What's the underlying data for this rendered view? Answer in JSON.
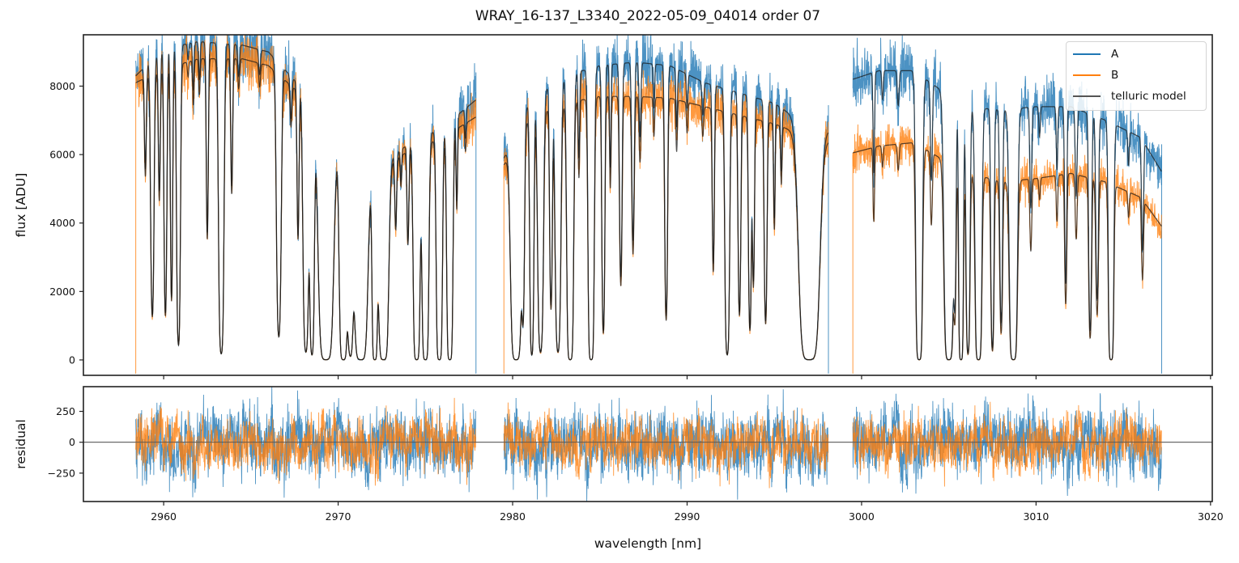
{
  "chart_data": [
    {
      "type": "line",
      "panel": "spectrum",
      "title": "WRAY_16-137_L3340_2022-05-09_04014  order 07",
      "xlabel": "",
      "ylabel": "flux [ADU]",
      "xlim": [
        2955.4,
        3020.1
      ],
      "ylim": [
        -450,
        9500
      ],
      "yticks": [
        0,
        2000,
        4000,
        6000,
        8000
      ],
      "ytick_labels": [
        "0",
        "2000",
        "4000",
        "6000",
        "8000"
      ],
      "xticks": [
        2960,
        2970,
        2980,
        2990,
        3000,
        3010,
        3020
      ],
      "grid": false,
      "legend": {
        "placement": "upper right",
        "entries": [
          {
            "label": "A",
            "color": "#1f77b4"
          },
          {
            "label": "B",
            "color": "#ff7f0e"
          },
          {
            "label": "telluric model",
            "color": "#555555"
          }
        ]
      },
      "segments": [
        {
          "x_start": 2958.4,
          "x_end": 2977.9,
          "continuum_A": [
            [
              2958.4,
              8300
            ],
            [
              2960,
              9100
            ],
            [
              2962,
              9300
            ],
            [
              2964.5,
              9200
            ],
            [
              2966,
              9000
            ],
            [
              2968,
              7900
            ],
            [
              2970,
              6500
            ],
            [
              2972,
              5500
            ],
            [
              2974,
              6300
            ],
            [
              2976,
              6800
            ],
            [
              2977.9,
              7600
            ]
          ],
          "continuum_B": [
            [
              2958.4,
              8100
            ],
            [
              2960,
              8500
            ],
            [
              2962,
              8800
            ],
            [
              2964.5,
              8800
            ],
            [
              2966,
              8600
            ],
            [
              2968,
              7700
            ],
            [
              2970,
              6300
            ],
            [
              2972,
              5400
            ],
            [
              2974,
              6100
            ],
            [
              2976,
              6500
            ],
            [
              2977.9,
              7100
            ]
          ]
        },
        {
          "x_start": 2979.5,
          "x_end": 2998.1,
          "continuum_A": [
            [
              2979.5,
              5900
            ],
            [
              2981,
              7600
            ],
            [
              2983,
              8300
            ],
            [
              2985,
              8600
            ],
            [
              2987,
              8700
            ],
            [
              2989,
              8600
            ],
            [
              2991,
              8100
            ],
            [
              2993,
              7800
            ],
            [
              2995,
              7500
            ],
            [
              2997,
              6800
            ],
            [
              2998.1,
              6700
            ]
          ],
          "continuum_B": [
            [
              2979.5,
              5700
            ],
            [
              2981,
              7100
            ],
            [
              2983,
              7500
            ],
            [
              2985,
              7700
            ],
            [
              2987,
              7700
            ],
            [
              2989,
              7650
            ],
            [
              2991,
              7400
            ],
            [
              2993,
              7150
            ],
            [
              2995,
              6900
            ],
            [
              2997,
              6500
            ],
            [
              2998.1,
              6400
            ]
          ]
        },
        {
          "x_start": 2999.5,
          "x_end": 3017.2,
          "continuum_A": [
            [
              2999.5,
              8200
            ],
            [
              3001,
              8450
            ],
            [
              3003,
              8450
            ],
            [
              3004.5,
              7900
            ],
            [
              3006,
              7400
            ],
            [
              3008,
              7300
            ],
            [
              3010,
              7400
            ],
            [
              3012,
              7400
            ],
            [
              3014,
              7000
            ],
            [
              3016,
              6500
            ],
            [
              3017.2,
              5500
            ]
          ],
          "continuum_B": [
            [
              2999.5,
              6050
            ],
            [
              3001,
              6250
            ],
            [
              3003,
              6350
            ],
            [
              3004.5,
              5900
            ],
            [
              3006,
              5500
            ],
            [
              3008,
              5200
            ],
            [
              3010,
              5300
            ],
            [
              3012,
              5450
            ],
            [
              3014,
              5200
            ],
            [
              3016,
              4750
            ],
            [
              3017.2,
              3900
            ]
          ]
        }
      ],
      "absorption_lines": [
        [
          2958.95,
          0.35,
          0.05
        ],
        [
          2959.35,
          0.85,
          0.07
        ],
        [
          2959.75,
          0.45,
          0.05
        ],
        [
          2960.1,
          0.85,
          0.06
        ],
        [
          2960.45,
          0.8,
          0.05
        ],
        [
          2960.85,
          0.95,
          0.07
        ],
        [
          2961.4,
          0.05,
          0.04
        ],
        [
          2961.7,
          0.15,
          0.04
        ],
        [
          2962.05,
          0.12,
          0.04
        ],
        [
          2962.5,
          0.6,
          0.05
        ],
        [
          2963.3,
          0.98,
          0.09
        ],
        [
          2963.9,
          0.45,
          0.05
        ],
        [
          2964.3,
          0.1,
          0.05
        ],
        [
          2965.5,
          0.08,
          0.05
        ],
        [
          2966.6,
          0.92,
          0.09
        ],
        [
          2967.3,
          0.15,
          0.05
        ],
        [
          2967.7,
          0.55,
          0.05
        ],
        [
          2968.15,
          0.97,
          0.1
        ],
        [
          2968.5,
          0.98,
          0.08
        ],
        [
          2969.3,
          1.0,
          0.22
        ],
        [
          2970.3,
          1.0,
          0.12
        ],
        [
          2970.7,
          0.98,
          0.1
        ],
        [
          2971.3,
          1.0,
          0.2
        ],
        [
          2972.1,
          1.0,
          0.08
        ],
        [
          2972.6,
          1.0,
          0.15
        ],
        [
          2973.3,
          0.35,
          0.05
        ],
        [
          2973.6,
          0.15,
          0.04
        ],
        [
          2974.0,
          0.45,
          0.05
        ],
        [
          2974.5,
          1.0,
          0.1
        ],
        [
          2975.0,
          1.0,
          0.1
        ],
        [
          2975.8,
          1.0,
          0.09
        ],
        [
          2976.4,
          1.0,
          0.09
        ],
        [
          2976.8,
          0.35,
          0.04
        ],
        [
          2977.3,
          0.12,
          0.04
        ],
        [
          2980.2,
          1.0,
          0.16
        ],
        [
          2980.6,
          0.8,
          0.06
        ],
        [
          2981.1,
          0.98,
          0.07
        ],
        [
          2981.6,
          0.97,
          0.1
        ],
        [
          2982.2,
          0.8,
          0.06
        ],
        [
          2982.6,
          0.97,
          0.1
        ],
        [
          2983.3,
          1.0,
          0.1
        ],
        [
          2983.8,
          0.3,
          0.04
        ],
        [
          2984.5,
          1.0,
          0.09
        ],
        [
          2985.2,
          0.9,
          0.06
        ],
        [
          2985.6,
          0.35,
          0.04
        ],
        [
          2986.2,
          0.72,
          0.06
        ],
        [
          2986.9,
          0.6,
          0.06
        ],
        [
          2987.3,
          0.25,
          0.05
        ],
        [
          2988.1,
          0.15,
          0.04
        ],
        [
          2988.8,
          0.85,
          0.06
        ],
        [
          2989.4,
          0.2,
          0.04
        ],
        [
          2990.0,
          0.12,
          0.04
        ],
        [
          2990.9,
          0.12,
          0.05
        ],
        [
          2991.5,
          0.65,
          0.05
        ],
        [
          2992.3,
          0.98,
          0.08
        ],
        [
          2993.0,
          0.82,
          0.06
        ],
        [
          2993.6,
          0.88,
          0.06
        ],
        [
          2993.8,
          0.7,
          0.05
        ],
        [
          2994.5,
          0.85,
          0.06
        ],
        [
          2995.0,
          0.45,
          0.04
        ],
        [
          2995.4,
          0.25,
          0.04
        ],
        [
          2997.0,
          1.0,
          0.3
        ],
        [
          3000.7,
          0.35,
          0.04
        ],
        [
          3001.2,
          0.1,
          0.04
        ],
        [
          3002.1,
          0.12,
          0.05
        ],
        [
          3003.3,
          1.0,
          0.1
        ],
        [
          3004.0,
          0.35,
          0.05
        ],
        [
          3005.0,
          1.0,
          0.14
        ],
        [
          3005.35,
          0.75,
          0.05
        ],
        [
          3005.7,
          1.0,
          0.07
        ],
        [
          3006.1,
          0.97,
          0.07
        ],
        [
          3006.7,
          1.0,
          0.1
        ],
        [
          3007.5,
          0.95,
          0.06
        ],
        [
          3008.0,
          0.85,
          0.06
        ],
        [
          3008.7,
          1.0,
          0.12
        ],
        [
          3009.7,
          0.4,
          0.05
        ],
        [
          3010.2,
          0.12,
          0.04
        ],
        [
          3011.2,
          0.25,
          0.04
        ],
        [
          3011.7,
          0.7,
          0.05
        ],
        [
          3012.3,
          0.35,
          0.05
        ],
        [
          3013.1,
          0.88,
          0.06
        ],
        [
          3013.5,
          0.75,
          0.06
        ],
        [
          3014.3,
          1.0,
          0.08
        ],
        [
          3015.3,
          0.15,
          0.04
        ],
        [
          3016.1,
          0.5,
          0.05
        ]
      ]
    },
    {
      "type": "line",
      "panel": "residual",
      "xlabel": "wavelength [nm]",
      "ylabel": "residual",
      "xlim": [
        2955.4,
        3020.1
      ],
      "ylim": [
        -480,
        450
      ],
      "yticks": [
        -250,
        0,
        250
      ],
      "ytick_labels": [
        "−250",
        "0",
        "250"
      ],
      "xticks": [
        2960,
        2970,
        2980,
        2990,
        3000,
        3010,
        3020
      ],
      "xtick_labels": [
        "2960",
        "2970",
        "2980",
        "2990",
        "3000",
        "3010",
        "3020"
      ],
      "zero_line": 0,
      "grid": false,
      "series": [
        {
          "name": "A residual",
          "color": "#1f77b4",
          "rms": 150
        },
        {
          "name": "B residual",
          "color": "#ff7f0e",
          "rms": 130
        }
      ]
    }
  ]
}
